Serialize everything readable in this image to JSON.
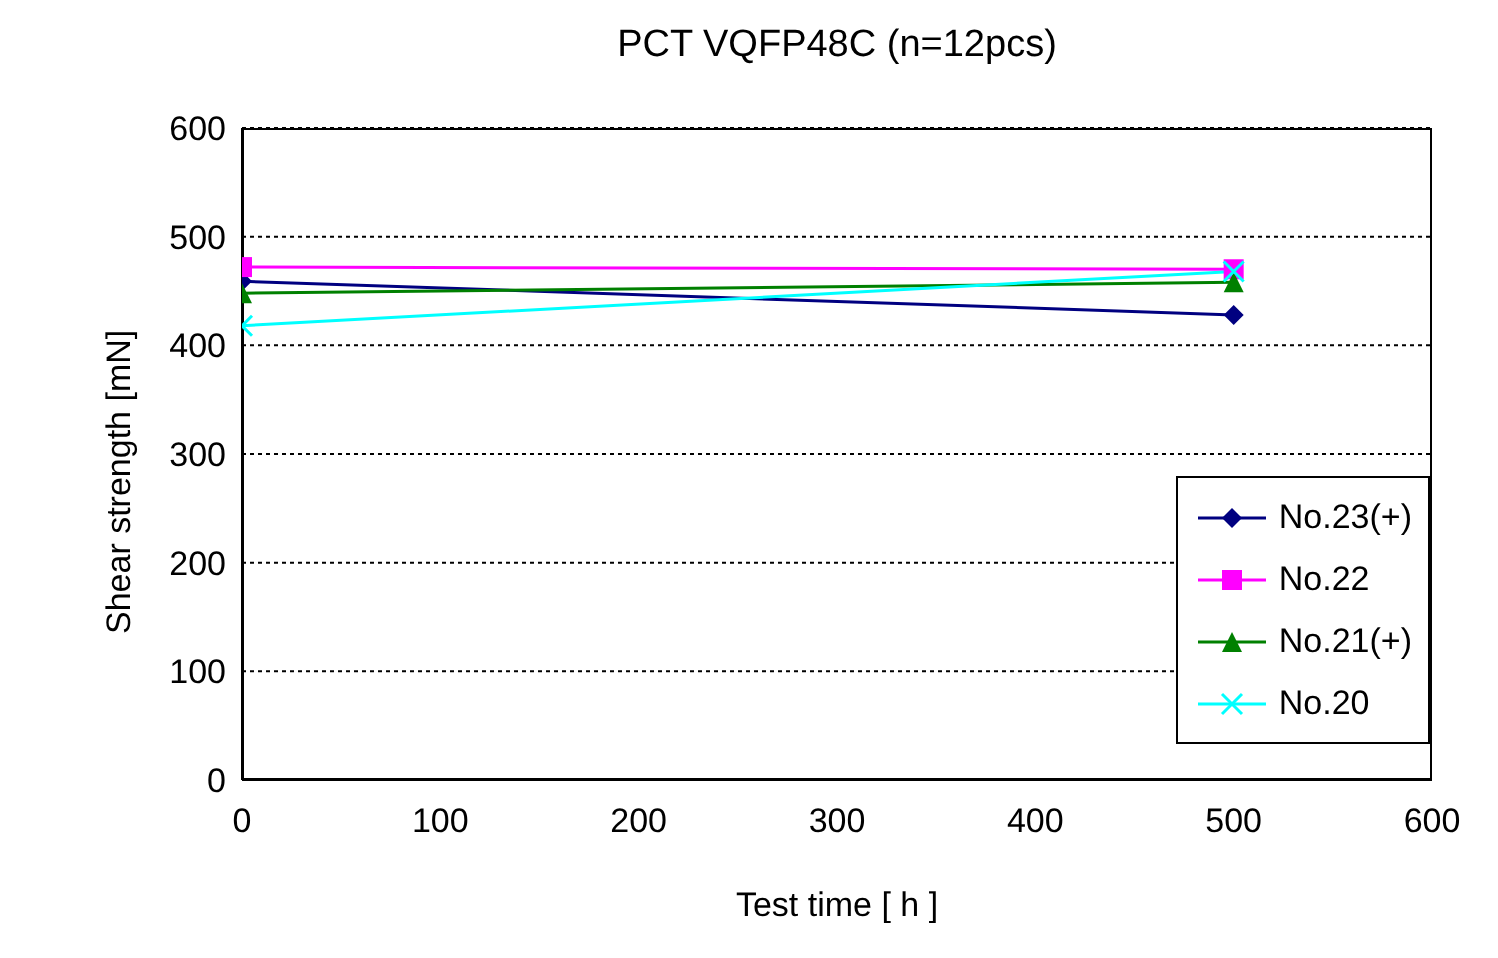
{
  "chart_data": {
    "type": "line",
    "title": "PCT VQFP48C (n=12pcs)",
    "xlabel": "Test time [ h ]",
    "ylabel": "Shear strength [mN]",
    "x": [
      0,
      500
    ],
    "series": [
      {
        "name": "No.23(+)",
        "color": "#000080",
        "values": [
          459,
          428
        ],
        "marker": "diamond"
      },
      {
        "name": "No.22",
        "color": "#ff00ff",
        "values": [
          472,
          470
        ],
        "marker": "square"
      },
      {
        "name": "No.21(+)",
        "color": "#008000",
        "values": [
          448,
          458
        ],
        "marker": "triangle"
      },
      {
        "name": "No.20",
        "color": "#00ffff",
        "values": [
          418,
          468
        ],
        "marker": "cross"
      }
    ],
    "xlim": [
      0,
      600
    ],
    "xticks": [
      0,
      100,
      200,
      300,
      400,
      500,
      600
    ],
    "ylim": [
      0,
      600
    ],
    "yticks": [
      0,
      100,
      200,
      300,
      400,
      500,
      600
    ],
    "grid": "y",
    "legend": "bottom right"
  }
}
